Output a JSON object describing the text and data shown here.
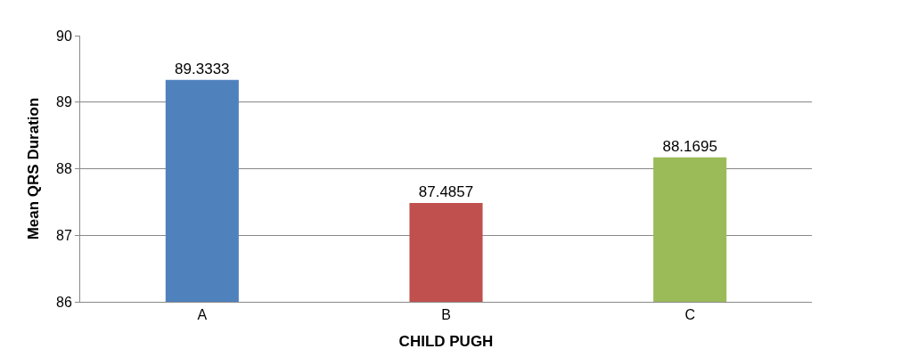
{
  "chart_data": {
    "type": "bar",
    "xlabel": "CHILD PUGH",
    "ylabel": "Mean QRS Duration",
    "categories": [
      "A",
      "B",
      "C"
    ],
    "values": [
      89.3333,
      87.4857,
      88.1695
    ],
    "colors": [
      "#4f81bd",
      "#c0504d",
      "#9bbb59"
    ],
    "ylim": [
      86,
      90
    ],
    "yticks": [
      86,
      87,
      88,
      89,
      90
    ],
    "grid": "y",
    "data_labels": true
  }
}
